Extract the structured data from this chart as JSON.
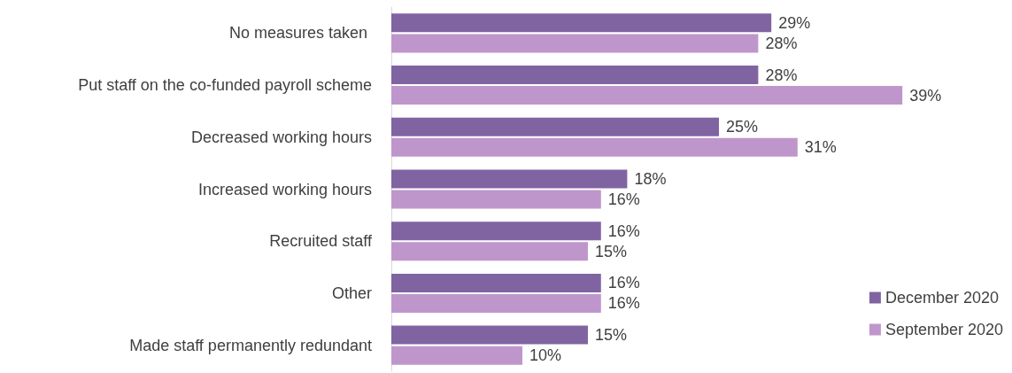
{
  "chart_data": {
    "type": "bar",
    "orientation": "horizontal",
    "categories": [
      "No measures taken ",
      "Put staff on the co-funded payroll scheme",
      "Decreased working hours",
      "Increased working hours",
      "Recruited staff",
      "Other",
      "Made staff permanently redundant"
    ],
    "series": [
      {
        "name": "December 2020",
        "color": "#8064a2",
        "values": [
          29,
          28,
          25,
          18,
          16,
          16,
          15
        ],
        "value_labels": [
          "29%",
          "28%",
          "25%",
          "18%",
          "16%",
          "16%",
          "15%"
        ]
      },
      {
        "name": "September 2020",
        "color": "#bf96cc",
        "values": [
          28,
          39,
          31,
          16,
          15,
          16,
          10
        ],
        "value_labels": [
          "28%",
          "39%",
          "31%",
          "16%",
          "15%",
          "16%",
          "10%"
        ]
      }
    ],
    "legend": "bottom right",
    "tick_labels": "y"
  }
}
